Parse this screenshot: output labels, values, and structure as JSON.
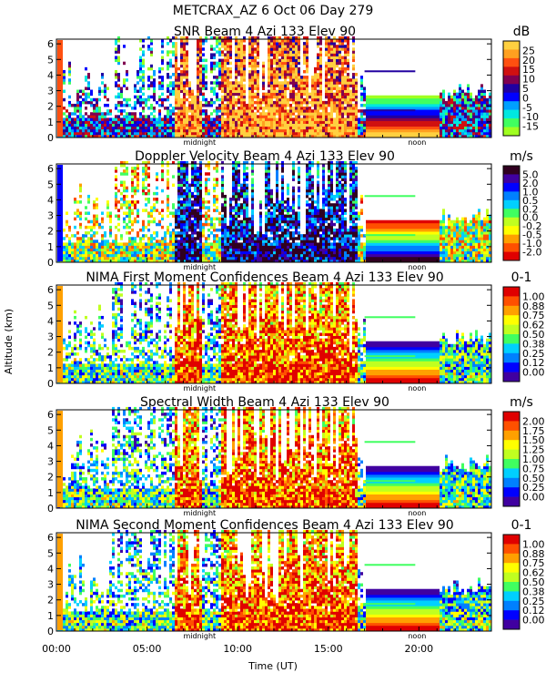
{
  "figure": {
    "title": "METCRAX_AZ    6 Oct 06 Day 279",
    "ylabel": "Altitude (km)",
    "xlabel": "Time (UT)",
    "x_tick_labels": [
      "00:00",
      "05:00",
      "10:00",
      "15:00",
      "20:00"
    ],
    "midnight_label": "midnight",
    "noon_label": "noon"
  },
  "chart_data": [
    {
      "type": "heatmap",
      "title": "SNR Beam 4 Azi 133 Elev 90",
      "unit": "dB",
      "xlim": [
        0,
        24
      ],
      "ylim": [
        0,
        6.3
      ],
      "yticks": [
        "0",
        "1",
        "2",
        "3",
        "4",
        "5",
        "6"
      ],
      "colorbar_labels": [
        "25",
        "20",
        "15",
        "10",
        "5",
        "0",
        "-5",
        "-10",
        "-15"
      ],
      "colors": [
        "#ffd040",
        "#ffa020",
        "#ff5010",
        "#d01010",
        "#800050",
        "#2000a0",
        "#0000ff",
        "#00a0ff",
        "#00e8e0",
        "#40ff60",
        "#a0ff20"
      ]
    },
    {
      "type": "heatmap",
      "title": "Doppler Velocity Beam 4 Azi 133 Elev 90",
      "unit": "m/s",
      "xlim": [
        0,
        24
      ],
      "ylim": [
        0,
        6.3
      ],
      "yticks": [
        "0",
        "1",
        "2",
        "3",
        "4",
        "5",
        "6"
      ],
      "colorbar_labels": [
        "5.0",
        "2.0",
        "1.0",
        "0.5",
        "0.2",
        "0.0",
        "-0.2",
        "-0.5",
        "-1.0",
        "-2.0"
      ],
      "colors": [
        "#300020",
        "#4000a0",
        "#0000ff",
        "#0080ff",
        "#00d0ff",
        "#40ff60",
        "#c0ff20",
        "#ffff00",
        "#ffa000",
        "#ff5000",
        "#e00000"
      ]
    },
    {
      "type": "heatmap",
      "title": "NIMA First Moment Confidences Beam 4 Azi 133 Elev 90",
      "unit": "0-1",
      "xlim": [
        0,
        24
      ],
      "ylim": [
        0,
        6.3
      ],
      "yticks": [
        "0",
        "1",
        "2",
        "3",
        "4",
        "5",
        "6"
      ],
      "colorbar_labels": [
        "1.00",
        "0.88",
        "0.75",
        "0.62",
        "0.50",
        "0.38",
        "0.25",
        "0.12",
        "0.00"
      ],
      "colors": [
        "#e00000",
        "#ff5000",
        "#ffa000",
        "#ffff00",
        "#c0ff20",
        "#40ff60",
        "#00d0ff",
        "#0080ff",
        "#0000ff",
        "#4000a0"
      ]
    },
    {
      "type": "heatmap",
      "title": "Spectral Width Beam 4 Azi 133 Elev 90",
      "unit": "m/s",
      "xlim": [
        0,
        24
      ],
      "ylim": [
        0,
        6.3
      ],
      "yticks": [
        "0",
        "1",
        "2",
        "3",
        "4",
        "5",
        "6"
      ],
      "colorbar_labels": [
        "2.00",
        "1.75",
        "1.50",
        "1.25",
        "1.00",
        "0.75",
        "0.50",
        "0.25",
        "0.00"
      ],
      "colors": [
        "#e00000",
        "#ff5000",
        "#ffa000",
        "#ffff00",
        "#c0ff20",
        "#40ff60",
        "#00d0ff",
        "#0080ff",
        "#0000ff",
        "#4000a0"
      ]
    },
    {
      "type": "heatmap",
      "title": "NIMA Second Moment Confidences Beam 4 Azi 133 Elev 90",
      "unit": "0-1",
      "xlim": [
        0,
        24
      ],
      "ylim": [
        0,
        6.3
      ],
      "yticks": [
        "0",
        "1",
        "2",
        "3",
        "4",
        "5",
        "6"
      ],
      "colorbar_labels": [
        "1.00",
        "0.88",
        "0.75",
        "0.62",
        "0.50",
        "0.38",
        "0.25",
        "0.12",
        "0.00"
      ],
      "colors": [
        "#e00000",
        "#ff5000",
        "#ffa000",
        "#ffff00",
        "#c0ff20",
        "#40ff60",
        "#00d0ff",
        "#0080ff",
        "#0000ff",
        "#4000a0"
      ]
    }
  ]
}
